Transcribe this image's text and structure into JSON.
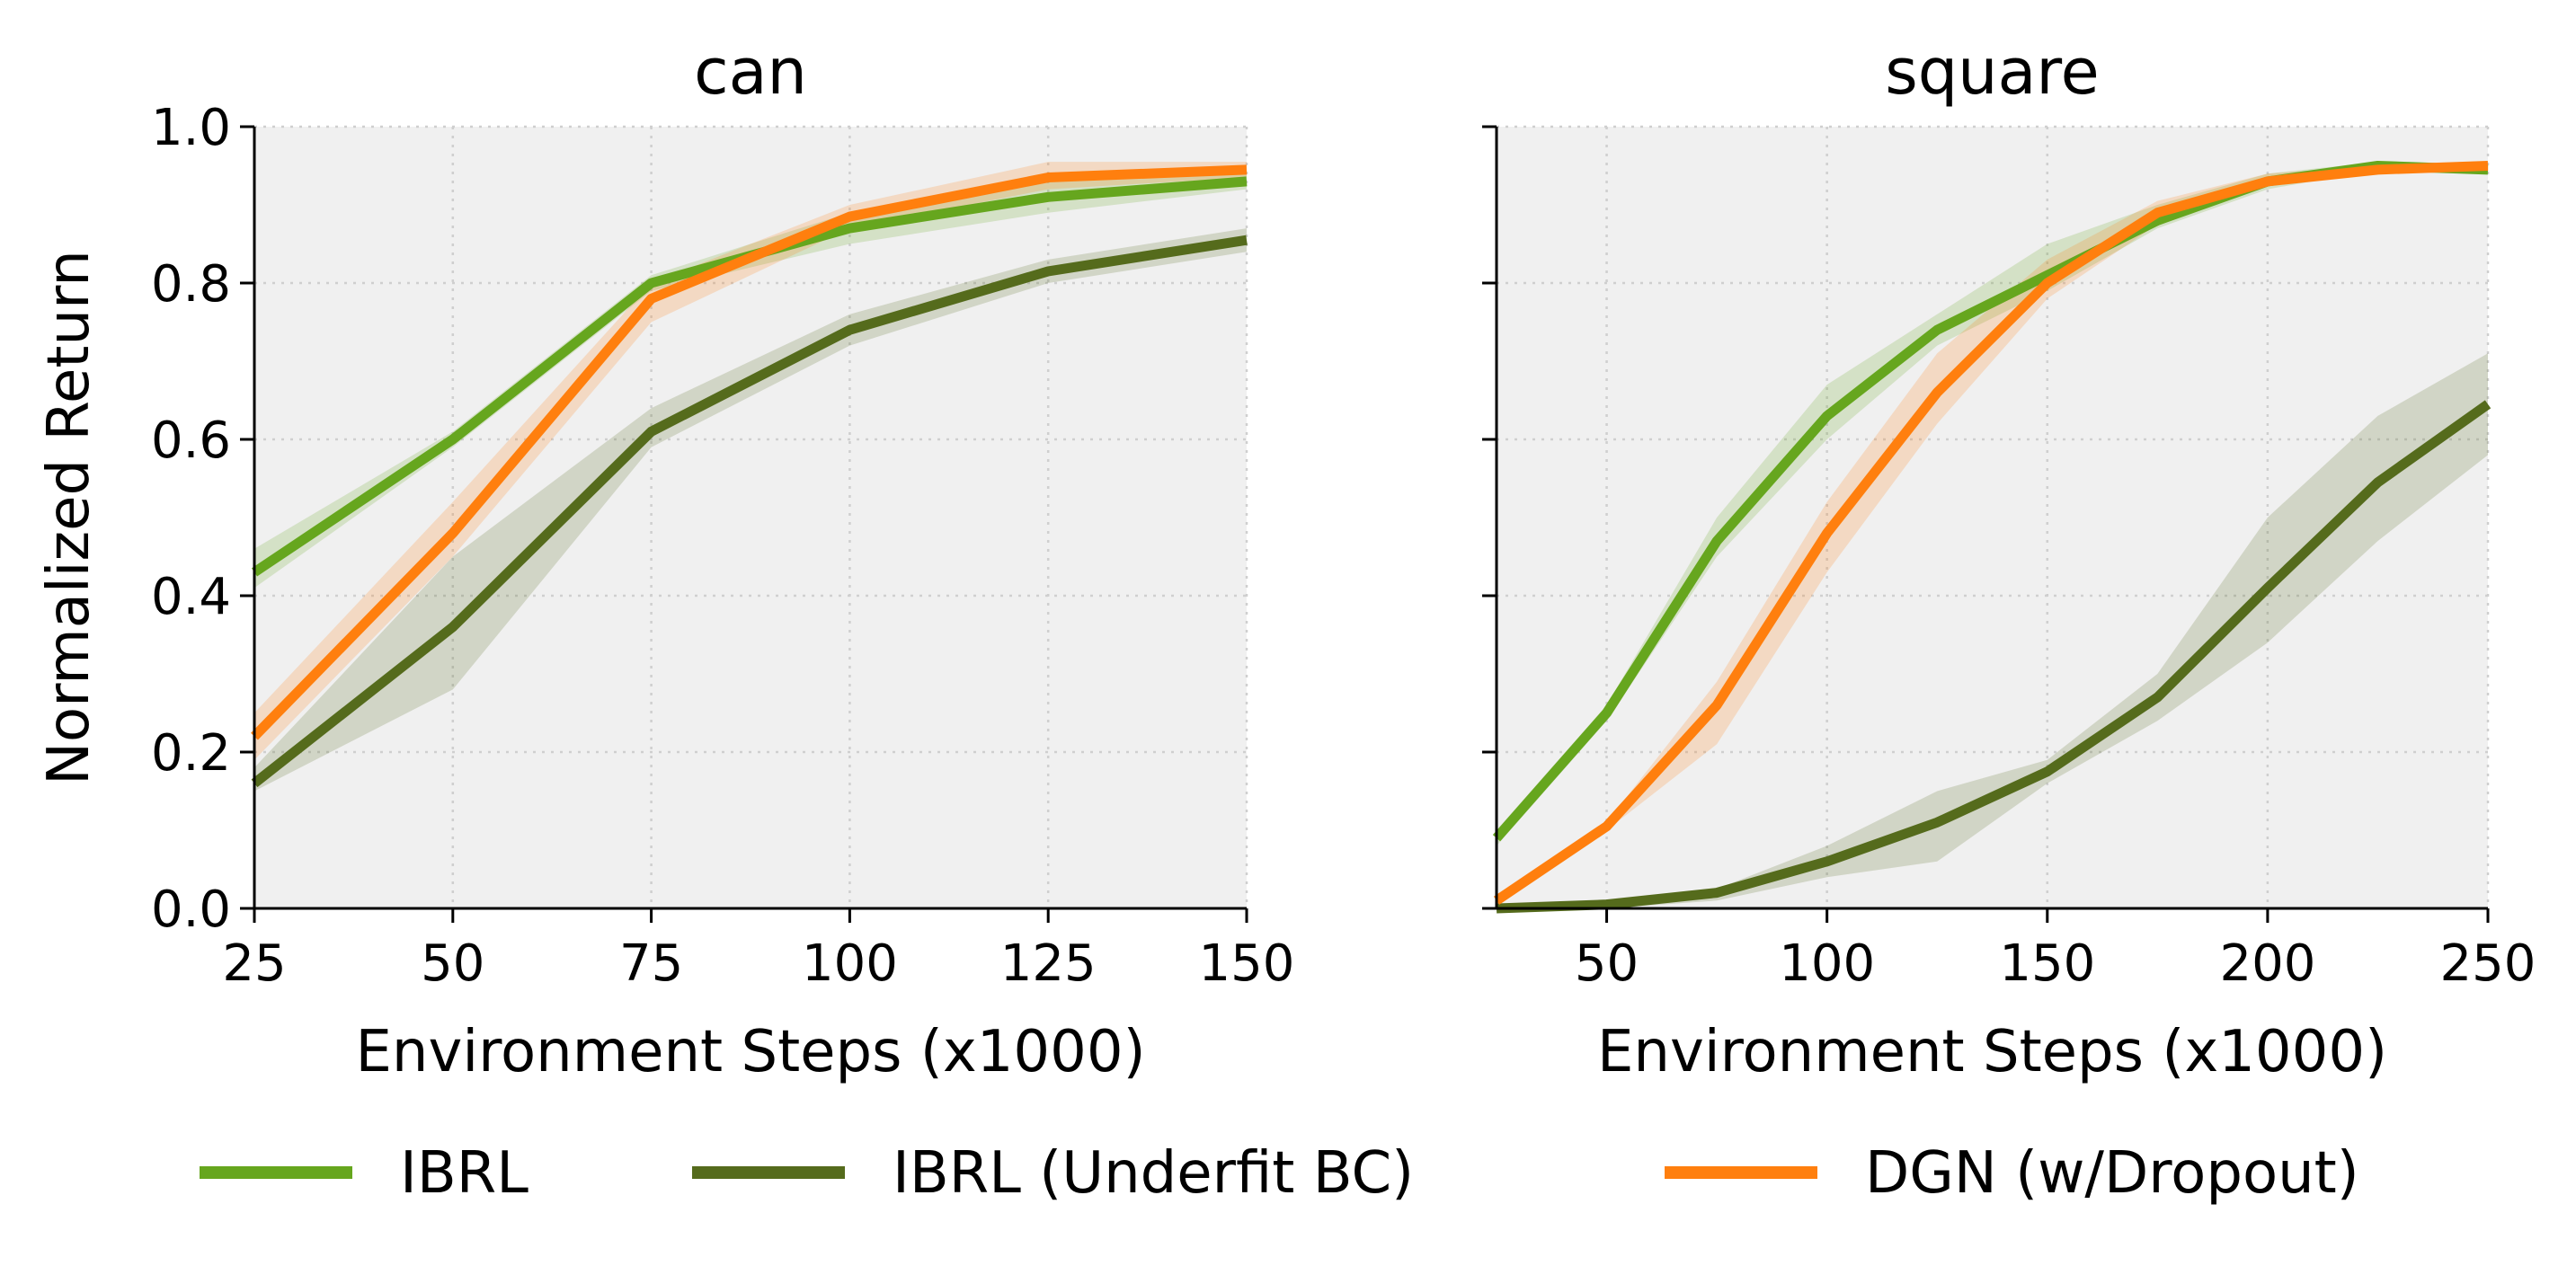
{
  "chart_data": [
    {
      "type": "line",
      "title": "can",
      "xlabel": "Environment Steps (x1000)",
      "ylabel": "Normalized Return",
      "xlim": [
        25,
        150
      ],
      "ylim": [
        0.0,
        1.0
      ],
      "xticks": [
        "25",
        "50",
        "75",
        "100",
        "125",
        "150"
      ],
      "yticks": [
        "0.0",
        "0.2",
        "0.4",
        "0.6",
        "0.8",
        "1.0"
      ],
      "grid": true,
      "series": [
        {
          "name": "IBRL",
          "color": "#66a61e",
          "x": [
            25,
            50,
            75,
            100,
            125,
            150
          ],
          "y": [
            0.43,
            0.6,
            0.8,
            0.87,
            0.91,
            0.93
          ],
          "lower": [
            0.41,
            0.59,
            0.79,
            0.85,
            0.89,
            0.92
          ],
          "upper": [
            0.46,
            0.61,
            0.81,
            0.89,
            0.93,
            0.945
          ]
        },
        {
          "name": "IBRL (Underfit BC)",
          "color": "#556b1c",
          "x": [
            25,
            50,
            75,
            100,
            125,
            150
          ],
          "y": [
            0.16,
            0.36,
            0.61,
            0.74,
            0.815,
            0.855
          ],
          "lower": [
            0.15,
            0.28,
            0.59,
            0.72,
            0.8,
            0.84
          ],
          "upper": [
            0.18,
            0.45,
            0.64,
            0.76,
            0.83,
            0.87
          ]
        },
        {
          "name": "DGN (w/Dropout)",
          "color": "#ff7f0e",
          "x": [
            25,
            50,
            75,
            100,
            125,
            150
          ],
          "y": [
            0.22,
            0.48,
            0.78,
            0.885,
            0.935,
            0.945
          ],
          "lower": [
            0.19,
            0.45,
            0.75,
            0.87,
            0.92,
            0.935
          ],
          "upper": [
            0.25,
            0.52,
            0.8,
            0.9,
            0.955,
            0.955
          ]
        }
      ]
    },
    {
      "type": "line",
      "title": "square",
      "xlabel": "Environment Steps (x1000)",
      "ylabel": "",
      "xlim": [
        25,
        250
      ],
      "ylim": [
        0.0,
        1.0
      ],
      "xticks": [
        "50",
        "100",
        "150",
        "200",
        "250"
      ],
      "yticks": [
        "",
        "",
        "",
        "",
        "",
        ""
      ],
      "grid": true,
      "series": [
        {
          "name": "IBRL",
          "color": "#66a61e",
          "x": [
            25,
            50,
            75,
            100,
            125,
            150,
            175,
            200,
            225,
            250
          ],
          "y": [
            0.09,
            0.25,
            0.47,
            0.63,
            0.74,
            0.81,
            0.88,
            0.93,
            0.95,
            0.945
          ],
          "lower": [
            0.08,
            0.24,
            0.45,
            0.6,
            0.72,
            0.79,
            0.87,
            0.92,
            0.945,
            0.94
          ],
          "upper": [
            0.1,
            0.26,
            0.5,
            0.67,
            0.76,
            0.85,
            0.9,
            0.94,
            0.955,
            0.95
          ]
        },
        {
          "name": "IBRL (Underfit BC)",
          "color": "#556b1c",
          "x": [
            25,
            50,
            75,
            100,
            125,
            150,
            175,
            200,
            225,
            250
          ],
          "y": [
            0.0,
            0.005,
            0.02,
            0.06,
            0.11,
            0.175,
            0.27,
            0.41,
            0.545,
            0.645
          ],
          "lower": [
            0.0,
            0.0,
            0.01,
            0.04,
            0.06,
            0.16,
            0.24,
            0.34,
            0.47,
            0.58
          ],
          "upper": [
            0.005,
            0.01,
            0.025,
            0.08,
            0.15,
            0.19,
            0.3,
            0.5,
            0.63,
            0.71
          ]
        },
        {
          "name": "DGN (w/Dropout)",
          "color": "#ff7f0e",
          "x": [
            25,
            50,
            75,
            100,
            125,
            150,
            175,
            200,
            225,
            250
          ],
          "y": [
            0.01,
            0.105,
            0.26,
            0.48,
            0.66,
            0.8,
            0.89,
            0.93,
            0.945,
            0.95
          ],
          "lower": [
            0.005,
            0.1,
            0.21,
            0.43,
            0.62,
            0.78,
            0.875,
            0.925,
            0.94,
            0.945
          ],
          "upper": [
            0.015,
            0.11,
            0.29,
            0.52,
            0.71,
            0.83,
            0.905,
            0.94,
            0.95,
            0.955
          ]
        }
      ]
    }
  ],
  "legend": {
    "placement": "bottom",
    "items": [
      {
        "label": "IBRL",
        "color": "#66a61e"
      },
      {
        "label": "IBRL (Underfit BC)",
        "color": "#556b1c"
      },
      {
        "label": "DGN (w/Dropout)",
        "color": "#ff7f0e"
      }
    ]
  }
}
